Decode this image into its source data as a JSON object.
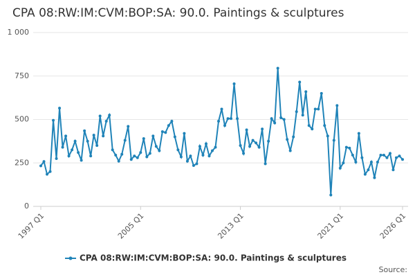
{
  "chart_data": {
    "type": "line",
    "title": "CPA 08:RW:IM:CVM:BOP:SA: 90.0. Paintings & sculptures",
    "source": "Source:",
    "categories": [
      "1997 Q1",
      null,
      null,
      null,
      null,
      null,
      null,
      null,
      null,
      null,
      null,
      null,
      null,
      null,
      null,
      null,
      null,
      null,
      null,
      null,
      null,
      null,
      null,
      null,
      null,
      null,
      null,
      null,
      null,
      null,
      null,
      null,
      "2005 Q1",
      null,
      null,
      null,
      null,
      null,
      null,
      null,
      null,
      null,
      null,
      null,
      null,
      null,
      null,
      null,
      null,
      null,
      null,
      null,
      null,
      null,
      null,
      null,
      null,
      null,
      null,
      null,
      null,
      null,
      null,
      null,
      "2013 Q1",
      null,
      null,
      null,
      null,
      null,
      null,
      null,
      null,
      null,
      null,
      null,
      null,
      null,
      null,
      null,
      null,
      null,
      null,
      null,
      null,
      null,
      null,
      null,
      null,
      null,
      null,
      null,
      null,
      null,
      null,
      null,
      "2021 Q1",
      null,
      null,
      null,
      null,
      null,
      null,
      null,
      null,
      null,
      null,
      null,
      null,
      null,
      null,
      null,
      null,
      null,
      null,
      null,
      "2026 Q1"
    ],
    "series": [
      {
        "name": "CPA 08:RW:IM:CVM:BOP:SA: 90.0. Paintings & sculptures",
        "color": "#1f83b8",
        "values": [
          233,
          258,
          185,
          200,
          495,
          275,
          565,
          340,
          405,
          290,
          325,
          375,
          310,
          265,
          435,
          375,
          290,
          410,
          350,
          520,
          405,
          490,
          525,
          325,
          295,
          260,
          300,
          380,
          460,
          270,
          290,
          280,
          310,
          390,
          285,
          305,
          405,
          345,
          320,
          430,
          425,
          465,
          490,
          400,
          325,
          285,
          420,
          260,
          290,
          235,
          245,
          345,
          295,
          360,
          290,
          320,
          340,
          490,
          560,
          465,
          505,
          505,
          705,
          505,
          350,
          305,
          440,
          345,
          380,
          365,
          340,
          445,
          245,
          375,
          505,
          480,
          795,
          510,
          500,
          385,
          320,
          400,
          545,
          715,
          525,
          660,
          465,
          445,
          560,
          560,
          650,
          465,
          405,
          65,
          380,
          580,
          220,
          250,
          340,
          335,
          295,
          255,
          420,
          280,
          185,
          210,
          255,
          165,
          255,
          295,
          295,
          280,
          305,
          210,
          280,
          290,
          270
        ]
      }
    ],
    "ylim": [
      0,
      1000
    ],
    "yticks": [
      0,
      250,
      500,
      750,
      {
        "value": 1000,
        "label": "1 000"
      }
    ],
    "grid": true
  }
}
